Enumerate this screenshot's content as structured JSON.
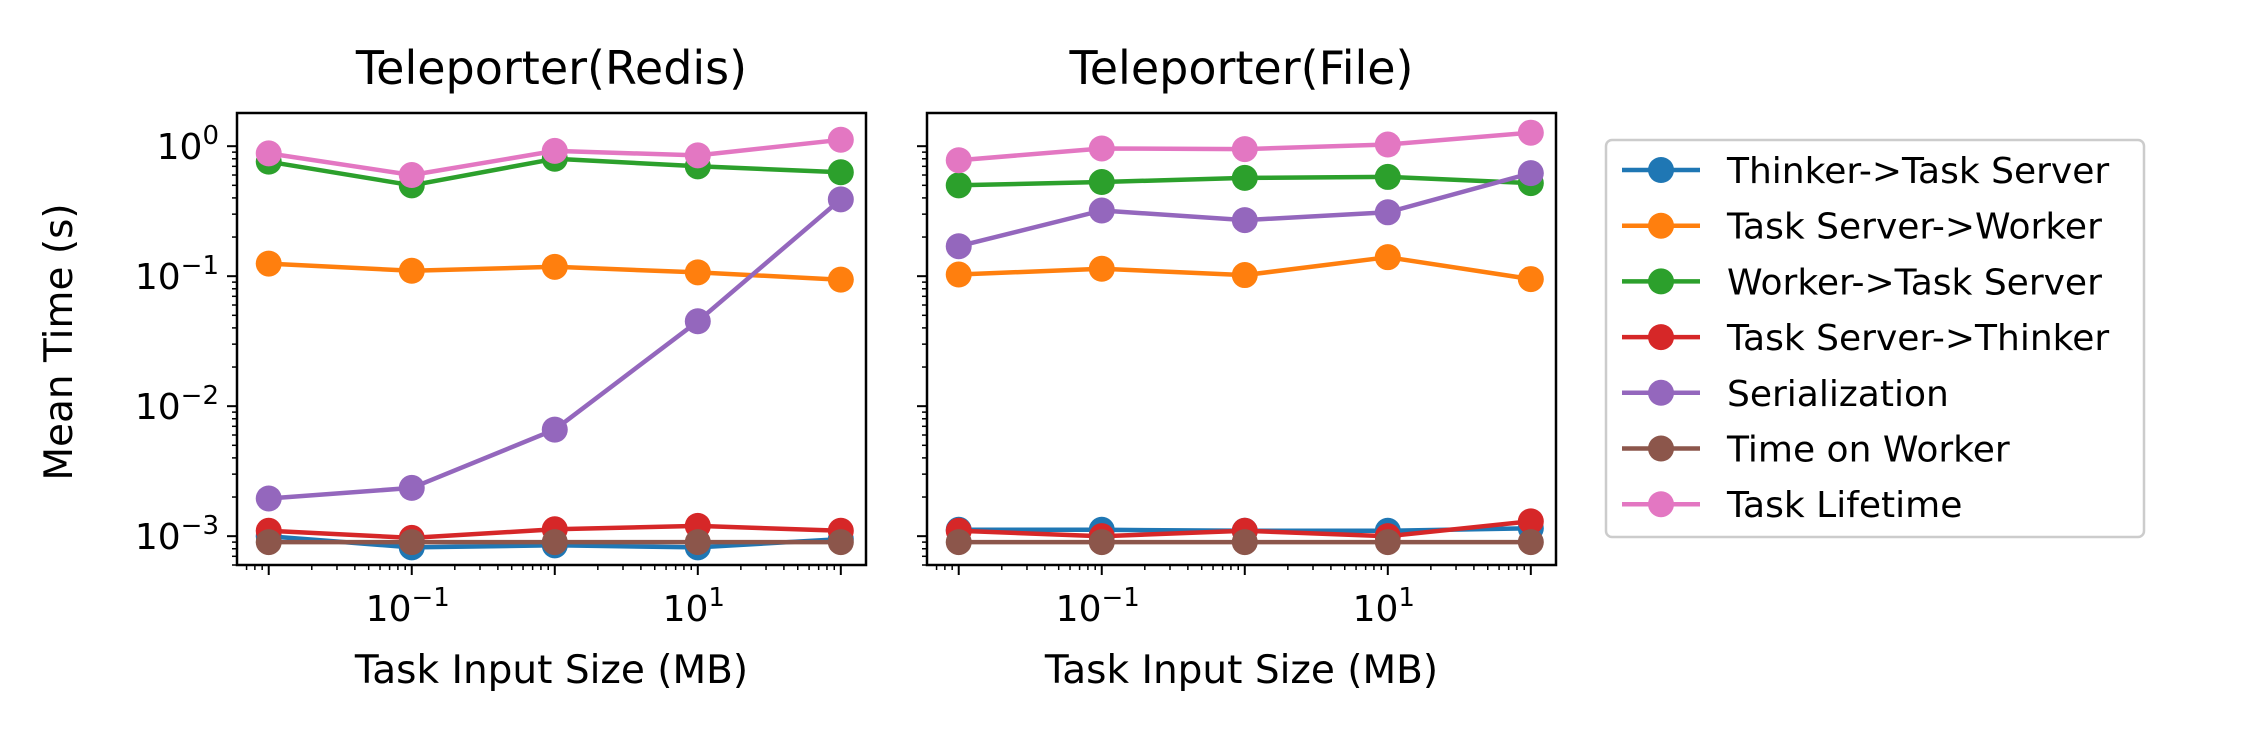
{
  "figure": {
    "ylabel": "Mean Time (s)"
  },
  "legend": {
    "placement": "outside-right",
    "entries": [
      {
        "name": "Thinker->Task Server",
        "color": "#1f77b4"
      },
      {
        "name": "Task Server->Worker",
        "color": "#ff7f0e"
      },
      {
        "name": "Worker->Task Server",
        "color": "#2ca02c"
      },
      {
        "name": "Task Server->Thinker",
        "color": "#d62728"
      },
      {
        "name": "Serialization",
        "color": "#9467bd"
      },
      {
        "name": "Time on Worker",
        "color": "#8c564b"
      },
      {
        "name": "Task Lifetime",
        "color": "#e377c2"
      }
    ]
  },
  "chart_data": [
    {
      "type": "line",
      "title": "Teleporter(Redis)",
      "xlabel": "Task Input Size (MB)",
      "ylabel": "Mean Time (s)",
      "xscale": "log",
      "yscale": "log",
      "xlim": [
        0.006,
        150
      ],
      "ylim": [
        0.0006,
        1.8
      ],
      "xticks": [
        {
          "base": "10",
          "exp": "−1",
          "value": 0.1
        },
        {
          "base": "10",
          "exp": "1",
          "value": 10
        }
      ],
      "yticks": [
        {
          "base": "10",
          "exp": "0",
          "value": 1
        },
        {
          "base": "10",
          "exp": "−1",
          "value": 0.1
        },
        {
          "base": "10",
          "exp": "−2",
          "value": 0.01
        },
        {
          "base": "10",
          "exp": "−3",
          "value": 0.001
        }
      ],
      "grid": false,
      "x": [
        0.01,
        0.1,
        1,
        10,
        100
      ],
      "series": [
        {
          "name": "Thinker->Task Server",
          "color": "#1f77b4",
          "values": [
            0.001,
            0.00082,
            0.00085,
            0.00082,
            0.00095
          ]
        },
        {
          "name": "Task Server->Worker",
          "color": "#ff7f0e",
          "values": [
            0.125,
            0.11,
            0.118,
            0.107,
            0.094
          ]
        },
        {
          "name": "Worker->Task Server",
          "color": "#2ca02c",
          "values": [
            0.76,
            0.5,
            0.8,
            0.7,
            0.63
          ]
        },
        {
          "name": "Task Server->Thinker",
          "color": "#d62728",
          "values": [
            0.0011,
            0.00097,
            0.00113,
            0.0012,
            0.0011
          ]
        },
        {
          "name": "Serialization",
          "color": "#9467bd",
          "values": [
            0.00195,
            0.00235,
            0.0066,
            0.045,
            0.39
          ]
        },
        {
          "name": "Time on Worker",
          "color": "#8c564b",
          "values": [
            0.0009,
            0.0009,
            0.0009,
            0.0009,
            0.0009
          ]
        },
        {
          "name": "Task Lifetime",
          "color": "#e377c2",
          "values": [
            0.88,
            0.6,
            0.92,
            0.85,
            1.12
          ]
        }
      ]
    },
    {
      "type": "line",
      "title": "Teleporter(File)",
      "xlabel": "Task Input Size (MB)",
      "ylabel": "",
      "xscale": "log",
      "yscale": "log",
      "xlim": [
        0.006,
        150
      ],
      "ylim": [
        0.0006,
        1.8
      ],
      "xticks": [
        {
          "base": "10",
          "exp": "−1",
          "value": 0.1
        },
        {
          "base": "10",
          "exp": "1",
          "value": 10
        }
      ],
      "yticks": [],
      "grid": false,
      "x": [
        0.01,
        0.1,
        1,
        10,
        100
      ],
      "series": [
        {
          "name": "Thinker->Task Server",
          "color": "#1f77b4",
          "values": [
            0.00112,
            0.00112,
            0.0011,
            0.0011,
            0.00115
          ]
        },
        {
          "name": "Task Server->Worker",
          "color": "#ff7f0e",
          "values": [
            0.103,
            0.114,
            0.102,
            0.14,
            0.095
          ]
        },
        {
          "name": "Worker->Task Server",
          "color": "#2ca02c",
          "values": [
            0.5,
            0.53,
            0.57,
            0.58,
            0.52
          ]
        },
        {
          "name": "Task Server->Thinker",
          "color": "#d62728",
          "values": [
            0.0011,
            0.001,
            0.0011,
            0.001,
            0.0013
          ]
        },
        {
          "name": "Serialization",
          "color": "#9467bd",
          "values": [
            0.17,
            0.32,
            0.27,
            0.31,
            0.62
          ]
        },
        {
          "name": "Time on Worker",
          "color": "#8c564b",
          "values": [
            0.0009,
            0.0009,
            0.0009,
            0.0009,
            0.0009
          ]
        },
        {
          "name": "Task Lifetime",
          "color": "#e377c2",
          "values": [
            0.78,
            0.96,
            0.95,
            1.03,
            1.27
          ]
        }
      ]
    }
  ]
}
